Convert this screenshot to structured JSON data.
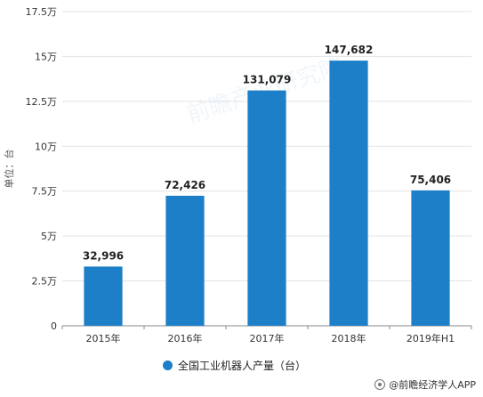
{
  "chart_data": {
    "type": "bar",
    "categories": [
      "2015年",
      "2016年",
      "2017年",
      "2018年",
      "2019年H1"
    ],
    "series": [
      {
        "name": "全国工业机器人产量（台）",
        "values": [
          32996,
          72426,
          131079,
          147682,
          75406
        ]
      }
    ],
    "data_labels": [
      "32,996",
      "72,426",
      "131,079",
      "147,682",
      "75,406"
    ],
    "ylabel": "单位：台",
    "ylim": [
      0,
      175000
    ],
    "yticks": [
      0,
      25000,
      50000,
      75000,
      100000,
      125000,
      150000,
      175000
    ],
    "ytick_labels": [
      "0",
      "2.5万",
      "5万",
      "7.5万",
      "10万",
      "12.5万",
      "15万",
      "17.5万"
    ],
    "grid": true,
    "legend_position": "bottom-center",
    "bar_color": "#1e7fc9"
  },
  "legend": {
    "label": "全国工业机器人产量（台）"
  },
  "source": {
    "text": "@前瞻经济学人APP"
  },
  "watermark": {
    "text": "前瞻产业研究院"
  }
}
